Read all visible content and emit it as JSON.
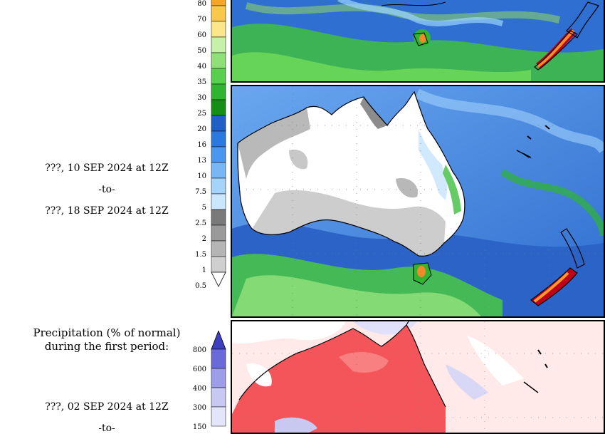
{
  "period_top": {
    "start": "???, 10 SEP 2024 at 12Z",
    "sep": "-to-",
    "end": "???, 18 SEP 2024 at 12Z"
  },
  "legend_precip": {
    "ticks": [
      "80",
      "70",
      "60",
      "50",
      "40",
      "35",
      "30",
      "25",
      "20",
      "16",
      "13",
      "10",
      "7.5",
      "5",
      "2.5",
      "2",
      "1.5",
      "1",
      "0.5"
    ],
    "colors": [
      "#f5a623",
      "#f8c84a",
      "#fde68a",
      "#c7f0a8",
      "#90e07a",
      "#58d04e",
      "#2fb52f",
      "#148f14",
      "#1e5fc8",
      "#2b78e0",
      "#4b96ee",
      "#79b6f5",
      "#a6d3fa",
      "#cbe7fc",
      "#7a7a7a",
      "#9a9a9a",
      "#b5b5b5",
      "#cfcfcf",
      "#ffffff"
    ]
  },
  "bottom_section": {
    "title_line1": "Precipitation (% of normal)",
    "title_line2": "during the first period:",
    "start": "???, 02 SEP 2024 at 12Z",
    "sep": "-to-",
    "ticks": [
      "800",
      "600",
      "400",
      "300",
      "150"
    ],
    "colors": [
      "#3e3fbf",
      "#6a6ad8",
      "#9d9de8",
      "#c8c8f2",
      "#e5e5fa"
    ]
  }
}
